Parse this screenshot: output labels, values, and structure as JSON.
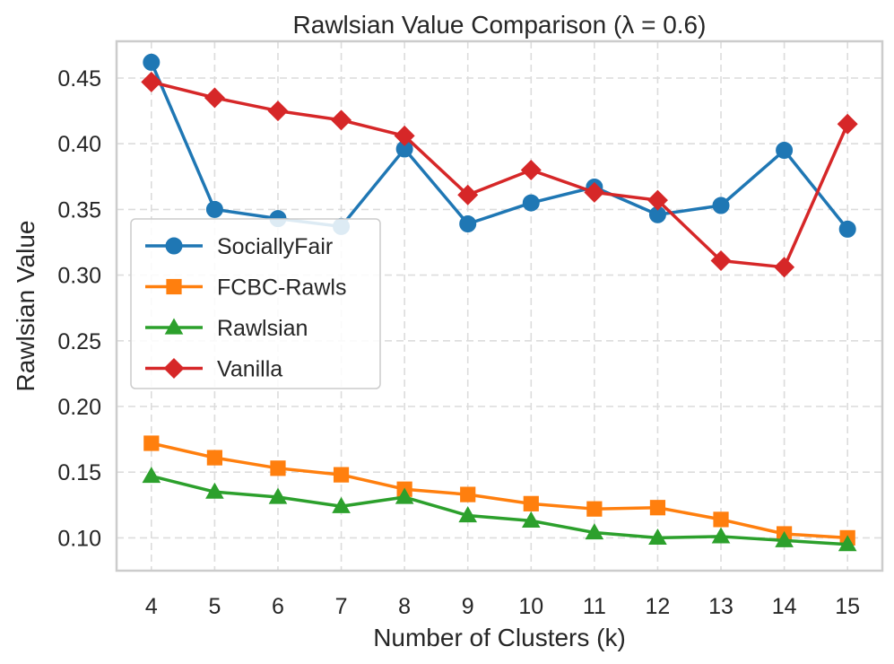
{
  "chart_data": {
    "type": "line",
    "title": "Rawlsian Value Comparison (λ = 0.6)",
    "xlabel": "Number of Clusters (k)",
    "ylabel": "Rawlsian Value",
    "x": [
      4,
      5,
      6,
      7,
      8,
      9,
      10,
      11,
      12,
      13,
      14,
      15
    ],
    "xlim": [
      3.45,
      15.55
    ],
    "ylim": [
      0.075,
      0.478
    ],
    "yticks": [
      0.1,
      0.15,
      0.2,
      0.25,
      0.3,
      0.35,
      0.4,
      0.45
    ],
    "ytick_labels": [
      "0.10",
      "0.15",
      "0.20",
      "0.25",
      "0.30",
      "0.35",
      "0.40",
      "0.45"
    ],
    "xtick_labels": [
      "4",
      "5",
      "6",
      "7",
      "8",
      "9",
      "10",
      "11",
      "12",
      "13",
      "14",
      "15"
    ],
    "grid": true,
    "legend_position": "center-left",
    "series": [
      {
        "name": "SociallyFair",
        "color": "#1f77b4",
        "marker": "circle",
        "values": [
          0.462,
          0.35,
          0.343,
          0.337,
          0.396,
          0.339,
          0.355,
          0.367,
          0.346,
          0.353,
          0.395,
          0.335
        ]
      },
      {
        "name": "FCBC-Rawls",
        "color": "#ff7f0e",
        "marker": "square",
        "values": [
          0.172,
          0.161,
          0.153,
          0.148,
          0.137,
          0.133,
          0.126,
          0.122,
          0.123,
          0.114,
          0.103,
          0.1
        ]
      },
      {
        "name": "Rawlsian",
        "color": "#2ca02c",
        "marker": "triangle",
        "values": [
          0.147,
          0.135,
          0.131,
          0.124,
          0.131,
          0.117,
          0.113,
          0.104,
          0.1,
          0.101,
          0.098,
          0.095
        ]
      },
      {
        "name": "Vanilla",
        "color": "#d62728",
        "marker": "diamond",
        "values": [
          0.447,
          0.435,
          0.425,
          0.418,
          0.406,
          0.361,
          0.38,
          0.363,
          0.357,
          0.311,
          0.306,
          0.415
        ]
      }
    ]
  }
}
